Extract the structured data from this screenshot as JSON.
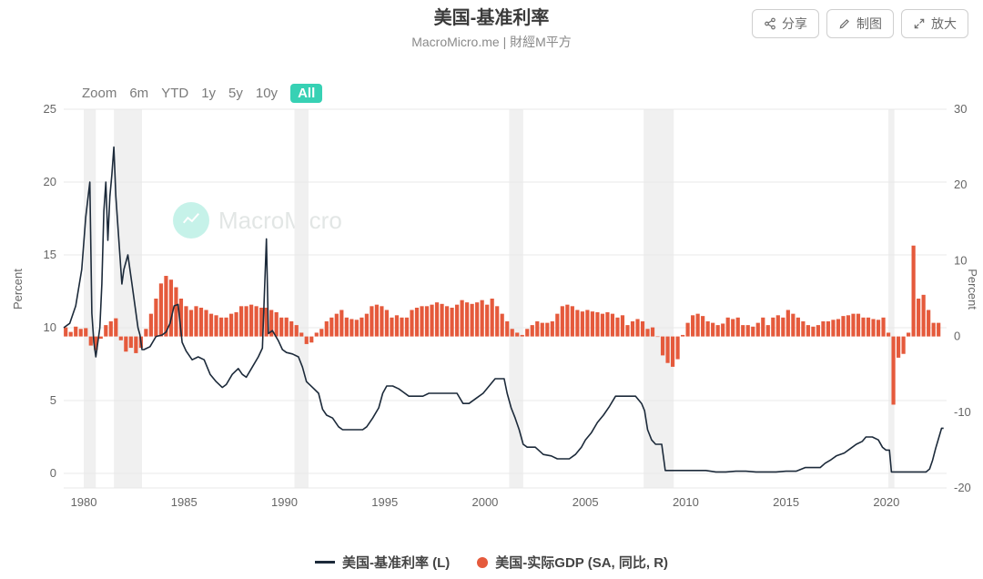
{
  "title": "美国-基准利率",
  "subtitle": "MacroMicro.me | 財經M平方",
  "actions": {
    "share": "分享",
    "edit": "制图",
    "zoom": "放大"
  },
  "zoom_label": "Zoom",
  "zoom_ranges": [
    "6m",
    "YTD",
    "1y",
    "5y",
    "10y",
    "All"
  ],
  "zoom_active": "All",
  "watermark_text": "MacroMicro",
  "left_axis": {
    "label": "Percent",
    "ticks": [
      0,
      5,
      10,
      15,
      20,
      25
    ],
    "min": -1,
    "max": 25
  },
  "right_axis": {
    "label": "Percent",
    "ticks": [
      -20,
      -10,
      0,
      10,
      20,
      30
    ],
    "min": -20,
    "max": 30
  },
  "x_axis": {
    "ticks": [
      1980,
      1985,
      1990,
      1995,
      2000,
      2005,
      2010,
      2015,
      2020
    ],
    "min": 1979,
    "max": 2023
  },
  "colors": {
    "line": "#1c2a3a",
    "bar": "#e55a3c",
    "grid": "#e9e9e9",
    "recession": "#f0f0f0",
    "accent": "#37d1b4"
  },
  "recession_bands": [
    [
      1980.0,
      1980.6
    ],
    [
      1981.5,
      1982.9
    ],
    [
      1990.5,
      1991.2
    ],
    [
      2001.2,
      2001.9
    ],
    [
      2007.9,
      2009.4
    ],
    [
      2020.1,
      2020.4
    ]
  ],
  "legend": {
    "line": "美国-基准利率 (L)",
    "bar": "美国-实际GDP (SA, 同比, R)"
  },
  "series_rate": [
    [
      1979.0,
      10.0
    ],
    [
      1979.3,
      10.3
    ],
    [
      1979.6,
      11.5
    ],
    [
      1979.9,
      14.0
    ],
    [
      1980.1,
      17.6
    ],
    [
      1980.3,
      20.0
    ],
    [
      1980.4,
      11.0
    ],
    [
      1980.5,
      9.0
    ],
    [
      1980.6,
      8.0
    ],
    [
      1980.8,
      10.0
    ],
    [
      1980.9,
      13.0
    ],
    [
      1981.0,
      18.0
    ],
    [
      1981.1,
      20.0
    ],
    [
      1981.2,
      16.0
    ],
    [
      1981.3,
      19.0
    ],
    [
      1981.4,
      20.5
    ],
    [
      1981.5,
      22.4
    ],
    [
      1981.6,
      19.0
    ],
    [
      1981.7,
      17.0
    ],
    [
      1981.8,
      15.0
    ],
    [
      1981.9,
      13.0
    ],
    [
      1982.0,
      14.0
    ],
    [
      1982.2,
      15.0
    ],
    [
      1982.4,
      13.0
    ],
    [
      1982.6,
      11.0
    ],
    [
      1982.7,
      10.0
    ],
    [
      1982.8,
      9.5
    ],
    [
      1982.9,
      8.5
    ],
    [
      1983.0,
      8.5
    ],
    [
      1983.3,
      8.7
    ],
    [
      1983.6,
      9.4
    ],
    [
      1983.9,
      9.5
    ],
    [
      1984.1,
      9.7
    ],
    [
      1984.3,
      10.3
    ],
    [
      1984.5,
      11.5
    ],
    [
      1984.7,
      11.6
    ],
    [
      1984.9,
      9.0
    ],
    [
      1985.1,
      8.4
    ],
    [
      1985.4,
      7.8
    ],
    [
      1985.7,
      8.0
    ],
    [
      1986.0,
      7.8
    ],
    [
      1986.3,
      6.8
    ],
    [
      1986.6,
      6.3
    ],
    [
      1986.9,
      5.9
    ],
    [
      1987.1,
      6.1
    ],
    [
      1987.4,
      6.8
    ],
    [
      1987.7,
      7.2
    ],
    [
      1987.9,
      6.8
    ],
    [
      1988.1,
      6.6
    ],
    [
      1988.4,
      7.3
    ],
    [
      1988.7,
      8.0
    ],
    [
      1988.9,
      8.6
    ],
    [
      1989.1,
      16.1
    ],
    [
      1989.2,
      9.6
    ],
    [
      1989.4,
      9.8
    ],
    [
      1989.7,
      9.1
    ],
    [
      1989.9,
      8.5
    ],
    [
      1990.1,
      8.3
    ],
    [
      1990.4,
      8.2
    ],
    [
      1990.7,
      8.0
    ],
    [
      1990.9,
      7.3
    ],
    [
      1991.1,
      6.3
    ],
    [
      1991.4,
      5.9
    ],
    [
      1991.7,
      5.5
    ],
    [
      1991.9,
      4.4
    ],
    [
      1992.1,
      4.0
    ],
    [
      1992.4,
      3.8
    ],
    [
      1992.7,
      3.2
    ],
    [
      1992.9,
      3.0
    ],
    [
      1993.2,
      3.0
    ],
    [
      1993.6,
      3.0
    ],
    [
      1993.9,
      3.0
    ],
    [
      1994.1,
      3.2
    ],
    [
      1994.4,
      3.8
    ],
    [
      1994.7,
      4.5
    ],
    [
      1994.9,
      5.5
    ],
    [
      1995.1,
      6.0
    ],
    [
      1995.4,
      6.0
    ],
    [
      1995.7,
      5.8
    ],
    [
      1995.9,
      5.6
    ],
    [
      1996.2,
      5.3
    ],
    [
      1996.6,
      5.3
    ],
    [
      1996.9,
      5.3
    ],
    [
      1997.2,
      5.5
    ],
    [
      1997.6,
      5.5
    ],
    [
      1997.9,
      5.5
    ],
    [
      1998.2,
      5.5
    ],
    [
      1998.6,
      5.5
    ],
    [
      1998.9,
      4.8
    ],
    [
      1999.2,
      4.8
    ],
    [
      1999.6,
      5.2
    ],
    [
      1999.9,
      5.5
    ],
    [
      2000.2,
      6.0
    ],
    [
      2000.5,
      6.5
    ],
    [
      2000.8,
      6.5
    ],
    [
      2000.95,
      6.5
    ],
    [
      2001.1,
      5.5
    ],
    [
      2001.3,
      4.5
    ],
    [
      2001.5,
      3.8
    ],
    [
      2001.7,
      3.0
    ],
    [
      2001.9,
      2.0
    ],
    [
      2002.1,
      1.8
    ],
    [
      2002.5,
      1.8
    ],
    [
      2002.9,
      1.3
    ],
    [
      2003.3,
      1.2
    ],
    [
      2003.6,
      1.0
    ],
    [
      2003.9,
      1.0
    ],
    [
      2004.2,
      1.0
    ],
    [
      2004.5,
      1.3
    ],
    [
      2004.8,
      1.8
    ],
    [
      2005.0,
      2.3
    ],
    [
      2005.3,
      2.8
    ],
    [
      2005.6,
      3.5
    ],
    [
      2005.9,
      4.0
    ],
    [
      2006.2,
      4.6
    ],
    [
      2006.5,
      5.3
    ],
    [
      2006.8,
      5.3
    ],
    [
      2007.1,
      5.3
    ],
    [
      2007.5,
      5.3
    ],
    [
      2007.8,
      4.8
    ],
    [
      2007.95,
      4.3
    ],
    [
      2008.1,
      3.0
    ],
    [
      2008.3,
      2.3
    ],
    [
      2008.5,
      2.0
    ],
    [
      2008.8,
      2.0
    ],
    [
      2008.9,
      1.0
    ],
    [
      2008.98,
      0.2
    ],
    [
      2009.2,
      0.2
    ],
    [
      2009.6,
      0.2
    ],
    [
      2010.0,
      0.2
    ],
    [
      2010.5,
      0.2
    ],
    [
      2011.0,
      0.2
    ],
    [
      2011.5,
      0.1
    ],
    [
      2012.0,
      0.1
    ],
    [
      2012.5,
      0.15
    ],
    [
      2013.0,
      0.15
    ],
    [
      2013.5,
      0.1
    ],
    [
      2014.0,
      0.1
    ],
    [
      2014.5,
      0.1
    ],
    [
      2015.0,
      0.15
    ],
    [
      2015.5,
      0.15
    ],
    [
      2015.95,
      0.4
    ],
    [
      2016.3,
      0.4
    ],
    [
      2016.7,
      0.4
    ],
    [
      2016.95,
      0.7
    ],
    [
      2017.2,
      0.9
    ],
    [
      2017.5,
      1.2
    ],
    [
      2017.9,
      1.4
    ],
    [
      2018.2,
      1.7
    ],
    [
      2018.5,
      2.0
    ],
    [
      2018.8,
      2.2
    ],
    [
      2018.98,
      2.5
    ],
    [
      2019.3,
      2.5
    ],
    [
      2019.6,
      2.3
    ],
    [
      2019.8,
      1.8
    ],
    [
      2019.98,
      1.6
    ],
    [
      2020.15,
      1.6
    ],
    [
      2020.25,
      0.1
    ],
    [
      2020.5,
      0.1
    ],
    [
      2021.0,
      0.1
    ],
    [
      2021.5,
      0.1
    ],
    [
      2021.98,
      0.1
    ],
    [
      2022.15,
      0.3
    ],
    [
      2022.3,
      0.9
    ],
    [
      2022.45,
      1.7
    ],
    [
      2022.6,
      2.4
    ],
    [
      2022.75,
      3.1
    ],
    [
      2022.85,
      3.1
    ]
  ],
  "series_gdp": [
    [
      1979.1,
      1.2
    ],
    [
      1979.35,
      0.6
    ],
    [
      1979.6,
      1.3
    ],
    [
      1979.85,
      1.0
    ],
    [
      1980.1,
      1.1
    ],
    [
      1980.35,
      -1.2
    ],
    [
      1980.6,
      -1.8
    ],
    [
      1980.85,
      -0.3
    ],
    [
      1981.1,
      1.5
    ],
    [
      1981.35,
      2.0
    ],
    [
      1981.6,
      2.4
    ],
    [
      1981.85,
      -0.5
    ],
    [
      1982.1,
      -2.0
    ],
    [
      1982.35,
      -1.5
    ],
    [
      1982.6,
      -2.2
    ],
    [
      1982.85,
      -1.5
    ],
    [
      1983.1,
      1.0
    ],
    [
      1983.35,
      3.0
    ],
    [
      1983.6,
      5.0
    ],
    [
      1983.85,
      7.0
    ],
    [
      1984.1,
      8.0
    ],
    [
      1984.35,
      7.5
    ],
    [
      1984.6,
      6.5
    ],
    [
      1984.85,
      5.0
    ],
    [
      1985.1,
      4.0
    ],
    [
      1985.35,
      3.5
    ],
    [
      1985.6,
      4.0
    ],
    [
      1985.85,
      3.8
    ],
    [
      1986.1,
      3.5
    ],
    [
      1986.35,
      3.0
    ],
    [
      1986.6,
      2.8
    ],
    [
      1986.85,
      2.5
    ],
    [
      1987.1,
      2.5
    ],
    [
      1987.35,
      3.0
    ],
    [
      1987.6,
      3.2
    ],
    [
      1987.85,
      4.0
    ],
    [
      1988.1,
      4.0
    ],
    [
      1988.35,
      4.2
    ],
    [
      1988.6,
      4.0
    ],
    [
      1988.85,
      3.8
    ],
    [
      1989.1,
      3.8
    ],
    [
      1989.35,
      3.5
    ],
    [
      1989.6,
      3.2
    ],
    [
      1989.85,
      2.5
    ],
    [
      1990.1,
      2.5
    ],
    [
      1990.35,
      2.0
    ],
    [
      1990.6,
      1.5
    ],
    [
      1990.85,
      0.5
    ],
    [
      1991.1,
      -1.0
    ],
    [
      1991.35,
      -0.8
    ],
    [
      1991.6,
      0.5
    ],
    [
      1991.85,
      1.0
    ],
    [
      1992.1,
      2.0
    ],
    [
      1992.35,
      2.5
    ],
    [
      1992.6,
      3.0
    ],
    [
      1992.85,
      3.5
    ],
    [
      1993.1,
      2.5
    ],
    [
      1993.35,
      2.3
    ],
    [
      1993.6,
      2.2
    ],
    [
      1993.85,
      2.5
    ],
    [
      1994.1,
      3.0
    ],
    [
      1994.35,
      4.0
    ],
    [
      1994.6,
      4.2
    ],
    [
      1994.85,
      4.0
    ],
    [
      1995.1,
      3.5
    ],
    [
      1995.35,
      2.5
    ],
    [
      1995.6,
      2.8
    ],
    [
      1995.85,
      2.5
    ],
    [
      1996.1,
      2.5
    ],
    [
      1996.35,
      3.5
    ],
    [
      1996.6,
      3.8
    ],
    [
      1996.85,
      4.0
    ],
    [
      1997.1,
      4.0
    ],
    [
      1997.35,
      4.2
    ],
    [
      1997.6,
      4.5
    ],
    [
      1997.85,
      4.3
    ],
    [
      1998.1,
      4.0
    ],
    [
      1998.35,
      3.8
    ],
    [
      1998.6,
      4.2
    ],
    [
      1998.85,
      4.8
    ],
    [
      1999.1,
      4.5
    ],
    [
      1999.35,
      4.3
    ],
    [
      1999.6,
      4.5
    ],
    [
      1999.85,
      4.8
    ],
    [
      2000.1,
      4.2
    ],
    [
      2000.35,
      5.0
    ],
    [
      2000.6,
      4.0
    ],
    [
      2000.85,
      3.0
    ],
    [
      2001.1,
      2.0
    ],
    [
      2001.35,
      1.0
    ],
    [
      2001.6,
      0.5
    ],
    [
      2001.85,
      0.2
    ],
    [
      2002.1,
      1.0
    ],
    [
      2002.35,
      1.5
    ],
    [
      2002.6,
      2.0
    ],
    [
      2002.85,
      1.8
    ],
    [
      2003.1,
      1.8
    ],
    [
      2003.35,
      2.0
    ],
    [
      2003.6,
      3.0
    ],
    [
      2003.85,
      4.0
    ],
    [
      2004.1,
      4.2
    ],
    [
      2004.35,
      4.0
    ],
    [
      2004.6,
      3.5
    ],
    [
      2004.85,
      3.3
    ],
    [
      2005.1,
      3.5
    ],
    [
      2005.35,
      3.3
    ],
    [
      2005.6,
      3.2
    ],
    [
      2005.85,
      3.0
    ],
    [
      2006.1,
      3.2
    ],
    [
      2006.35,
      3.0
    ],
    [
      2006.6,
      2.5
    ],
    [
      2006.85,
      2.8
    ],
    [
      2007.1,
      1.5
    ],
    [
      2007.35,
      2.0
    ],
    [
      2007.6,
      2.3
    ],
    [
      2007.85,
      2.0
    ],
    [
      2008.1,
      1.0
    ],
    [
      2008.35,
      1.2
    ],
    [
      2008.6,
      0.0
    ],
    [
      2008.85,
      -2.5
    ],
    [
      2009.1,
      -3.5
    ],
    [
      2009.35,
      -4.0
    ],
    [
      2009.6,
      -3.0
    ],
    [
      2009.85,
      0.2
    ],
    [
      2010.1,
      1.8
    ],
    [
      2010.35,
      2.8
    ],
    [
      2010.6,
      3.0
    ],
    [
      2010.85,
      2.7
    ],
    [
      2011.1,
      2.0
    ],
    [
      2011.35,
      1.8
    ],
    [
      2011.6,
      1.5
    ],
    [
      2011.85,
      1.7
    ],
    [
      2012.1,
      2.5
    ],
    [
      2012.35,
      2.3
    ],
    [
      2012.6,
      2.5
    ],
    [
      2012.85,
      1.5
    ],
    [
      2013.1,
      1.5
    ],
    [
      2013.35,
      1.3
    ],
    [
      2013.6,
      1.8
    ],
    [
      2013.85,
      2.5
    ],
    [
      2014.1,
      1.5
    ],
    [
      2014.35,
      2.5
    ],
    [
      2014.6,
      2.8
    ],
    [
      2014.85,
      2.5
    ],
    [
      2015.1,
      3.5
    ],
    [
      2015.35,
      3.0
    ],
    [
      2015.6,
      2.5
    ],
    [
      2015.85,
      2.0
    ],
    [
      2016.1,
      1.5
    ],
    [
      2016.35,
      1.3
    ],
    [
      2016.6,
      1.5
    ],
    [
      2016.85,
      2.0
    ],
    [
      2017.1,
      2.0
    ],
    [
      2017.35,
      2.2
    ],
    [
      2017.6,
      2.3
    ],
    [
      2017.85,
      2.7
    ],
    [
      2018.1,
      2.8
    ],
    [
      2018.35,
      3.0
    ],
    [
      2018.6,
      3.0
    ],
    [
      2018.85,
      2.5
    ],
    [
      2019.1,
      2.5
    ],
    [
      2019.35,
      2.3
    ],
    [
      2019.6,
      2.2
    ],
    [
      2019.85,
      2.5
    ],
    [
      2020.1,
      0.5
    ],
    [
      2020.35,
      -9.0
    ],
    [
      2020.6,
      -2.8
    ],
    [
      2020.85,
      -2.3
    ],
    [
      2021.1,
      0.5
    ],
    [
      2021.35,
      12.0
    ],
    [
      2021.6,
      5.0
    ],
    [
      2021.85,
      5.5
    ],
    [
      2022.1,
      3.5
    ],
    [
      2022.35,
      1.8
    ],
    [
      2022.6,
      1.8
    ]
  ]
}
